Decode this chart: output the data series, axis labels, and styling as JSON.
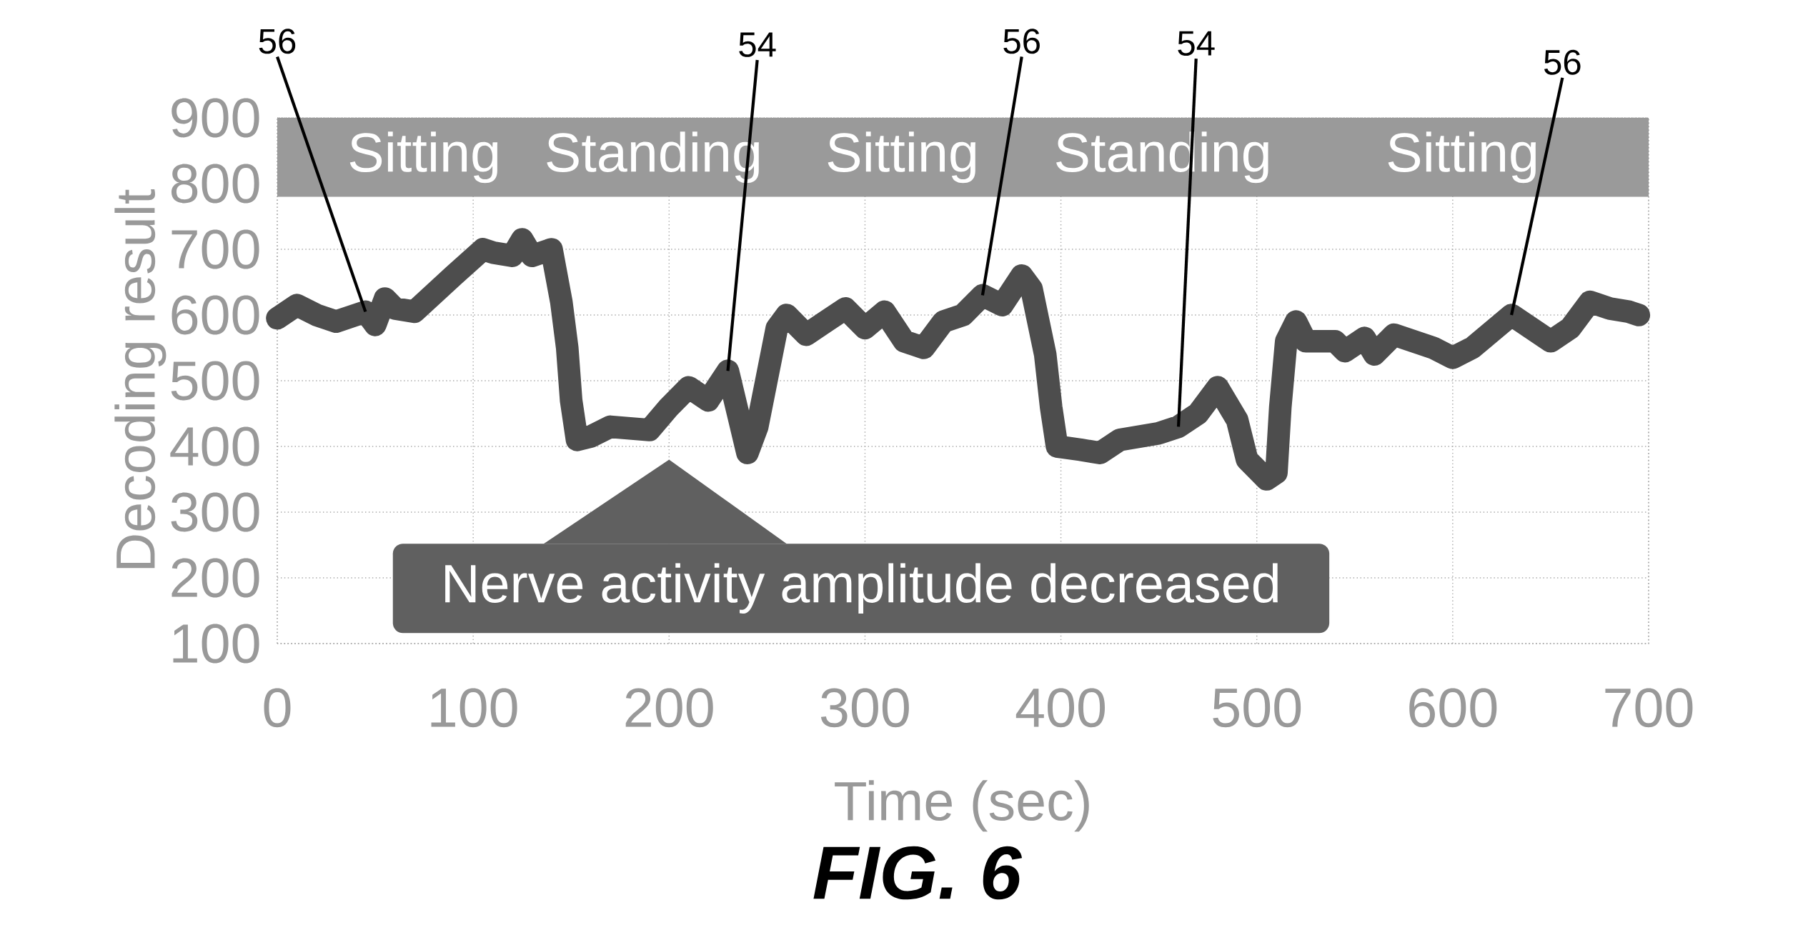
{
  "chart_data": {
    "type": "line",
    "xlabel": "Time (sec)",
    "ylabel": "Decoding result",
    "xlim": [
      0,
      700
    ],
    "ylim": [
      100,
      900
    ],
    "xticks": [
      0,
      100,
      200,
      300,
      400,
      500,
      600,
      700
    ],
    "yticks": [
      100,
      200,
      300,
      400,
      500,
      600,
      700,
      800,
      900
    ],
    "grid": true,
    "series": [
      {
        "color": "#4d4d4d",
        "x": [
          0,
          10,
          20,
          30,
          45,
          50,
          55,
          60,
          70,
          90,
          105,
          110,
          120,
          125,
          130,
          140,
          145,
          148,
          150,
          153,
          160,
          170,
          190,
          200,
          210,
          220,
          230,
          240,
          245,
          255,
          260,
          270,
          280,
          290,
          300,
          310,
          320,
          330,
          340,
          350,
          360,
          370,
          380,
          385,
          392,
          395,
          398,
          410,
          420,
          430,
          450,
          460,
          470,
          480,
          490,
          495,
          505,
          510,
          512,
          515,
          520,
          525,
          540,
          545,
          555,
          560,
          570,
          590,
          600,
          610,
          620,
          630,
          640,
          650,
          660,
          670,
          680,
          690,
          695
        ],
        "values": [
          595,
          615,
          600,
          590,
          605,
          585,
          625,
          610,
          605,
          660,
          700,
          695,
          690,
          715,
          690,
          700,
          620,
          550,
          470,
          410,
          415,
          430,
          425,
          460,
          490,
          470,
          515,
          390,
          430,
          580,
          600,
          570,
          590,
          610,
          580,
          605,
          560,
          550,
          590,
          600,
          630,
          615,
          660,
          640,
          540,
          460,
          400,
          395,
          390,
          410,
          420,
          430,
          450,
          490,
          440,
          380,
          350,
          360,
          460,
          560,
          590,
          560,
          560,
          545,
          565,
          540,
          570,
          550,
          535,
          550,
          575,
          600,
          580,
          560,
          580,
          620,
          610,
          605,
          600
        ]
      }
    ],
    "bands": [
      {
        "axis": "y",
        "from": 780,
        "to": 900,
        "color": "#9a9a9a"
      }
    ],
    "annotations": [
      "Sitting",
      "Standing",
      "Sitting",
      "Standing",
      "Sitting",
      {
        "text": "56",
        "x": 45,
        "y": 605
      },
      {
        "text": "54",
        "x": 230,
        "y": 515
      },
      {
        "text": "56",
        "x": 360,
        "y": 630
      },
      {
        "text": "54",
        "x": 460,
        "y": 430
      },
      {
        "text": "56",
        "x": 630,
        "y": 600
      },
      "Nerve activity amplitude decreased",
      "FIG. 6"
    ]
  }
}
